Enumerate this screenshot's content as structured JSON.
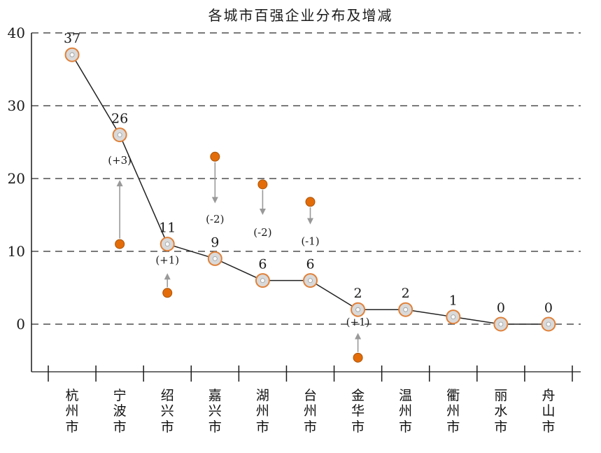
{
  "page": {
    "background": "#ffffff"
  },
  "chart_data": {
    "type": "line",
    "title": "各城市百强企业分布及增减",
    "categories": [
      "杭州市",
      "宁波市",
      "绍兴市",
      "嘉兴市",
      "湖州市",
      "台州市",
      "金华市",
      "温州市",
      "衢州市",
      "丽水市",
      "舟山市"
    ],
    "values": [
      37,
      26,
      11,
      9,
      6,
      6,
      2,
      2,
      1,
      0,
      0
    ],
    "yticks": [
      0,
      10,
      20,
      30,
      40
    ],
    "ylim": [
      -7,
      40
    ],
    "grid": "horizontal-dashed",
    "legend": "none",
    "changes": [
      {
        "category": "宁波市",
        "index": 1,
        "label": "(+3)",
        "delta": 3,
        "dot_value": 11.0,
        "tip_value": 19.8,
        "label_value": 22.5
      },
      {
        "category": "绍兴市",
        "index": 2,
        "label": "(+1)",
        "delta": 1,
        "dot_value": 4.3,
        "tip_value": 7.0,
        "label_value": 8.8
      },
      {
        "category": "嘉兴市",
        "index": 3,
        "label": "(-2)",
        "delta": -2,
        "dot_value": 23.0,
        "tip_value": 16.6,
        "label_value": 14.4
      },
      {
        "category": "湖州市",
        "index": 4,
        "label": "(-2)",
        "delta": -2,
        "dot_value": 19.2,
        "tip_value": 15.0,
        "label_value": 12.6
      },
      {
        "category": "台州市",
        "index": 5,
        "label": "(-1)",
        "delta": -1,
        "dot_value": 16.8,
        "tip_value": 13.7,
        "label_value": 11.4
      },
      {
        "category": "金华市",
        "index": 6,
        "label": "(+1)",
        "delta": 1,
        "dot_value": -4.6,
        "tip_value": -1.2,
        "label_value": 0.3
      }
    ],
    "colors": {
      "line": "#222222",
      "marker_fill": "#d9d9d9",
      "marker_stroke": "#e0813a",
      "marker_center": "#fafafa",
      "marker_center_stroke": "#9c9c9c",
      "change_dot": "#e36c09",
      "change_dot_stroke": "#a85408",
      "arrow": "#999999",
      "grid": "#2b2b2b",
      "axis": "#1a1a1a",
      "text": "#1a1a1a"
    }
  }
}
